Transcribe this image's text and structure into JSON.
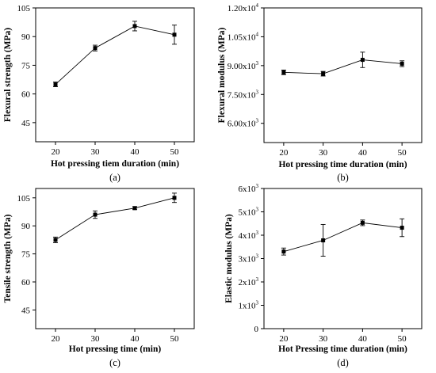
{
  "chart_data": [
    {
      "type": "line",
      "panel_label": "(a)",
      "xlabel": "Hot pressing tiem duration (min)",
      "ylabel": "Flexural strength (MPa)",
      "xlim": [
        15,
        55
      ],
      "ylim": [
        35,
        105
      ],
      "x_ticks": [
        20,
        30,
        40,
        50
      ],
      "y_ticks": [
        45,
        60,
        75,
        90,
        105
      ],
      "y_tick_format": "plain",
      "series": [
        {
          "x": [
            20,
            30,
            40,
            50
          ],
          "y": [
            65,
            84,
            95.5,
            91
          ],
          "error": [
            1.2,
            1.5,
            2.5,
            5
          ]
        }
      ]
    },
    {
      "type": "line",
      "panel_label": "(b)",
      "xlabel": "Hot pressing time duration (min)",
      "ylabel": "Flexural modulus (MPa)",
      "xlim": [
        15,
        55
      ],
      "ylim": [
        5000,
        12000
      ],
      "x_ticks": [
        20,
        30,
        40,
        50
      ],
      "y_ticks": [
        6000,
        7500,
        9000,
        10500,
        12000
      ],
      "y_tick_labels": [
        "6.00x10",
        "7.50x10",
        "9.00x10",
        "1.05x10",
        "1.20x10"
      ],
      "y_tick_exponent": "3",
      "y_tick_exponents": [
        "3",
        "3",
        "3",
        "4",
        "4"
      ],
      "y_tick_format": "sci",
      "series": [
        {
          "x": [
            20,
            30,
            40,
            50
          ],
          "y": [
            8650,
            8580,
            9300,
            9100
          ],
          "error": [
            120,
            120,
            400,
            150
          ]
        }
      ]
    },
    {
      "type": "line",
      "panel_label": "(c)",
      "xlabel": "Hot pressing time (min)",
      "ylabel": "Tensile strength (MPa)",
      "xlim": [
        15,
        55
      ],
      "ylim": [
        35,
        110
      ],
      "x_ticks": [
        20,
        30,
        40,
        50
      ],
      "y_ticks": [
        45,
        60,
        75,
        90,
        105
      ],
      "y_tick_format": "plain",
      "series": [
        {
          "x": [
            20,
            30,
            40,
            50
          ],
          "y": [
            82.5,
            96,
            99.5,
            105
          ],
          "error": [
            1.5,
            2,
            0.8,
            2.5
          ]
        }
      ]
    },
    {
      "type": "line",
      "panel_label": "(d)",
      "xlabel": "Hot Pressing time duration (min)",
      "ylabel": "Elastic modulus (MPa)",
      "xlim": [
        15,
        55
      ],
      "ylim": [
        0,
        6000
      ],
      "x_ticks": [
        20,
        30,
        40,
        50
      ],
      "y_ticks": [
        0,
        1000,
        2000,
        3000,
        4000,
        5000,
        6000
      ],
      "y_tick_labels": [
        "0",
        "1x10",
        "2x10",
        "3x10",
        "4x10",
        "5x10",
        "6x10"
      ],
      "y_tick_exponent": "3",
      "y_tick_format": "sci",
      "series": [
        {
          "x": [
            20,
            30,
            40,
            50
          ],
          "y": [
            3300,
            3780,
            4530,
            4320
          ],
          "error": [
            150,
            680,
            120,
            380
          ]
        }
      ]
    }
  ]
}
